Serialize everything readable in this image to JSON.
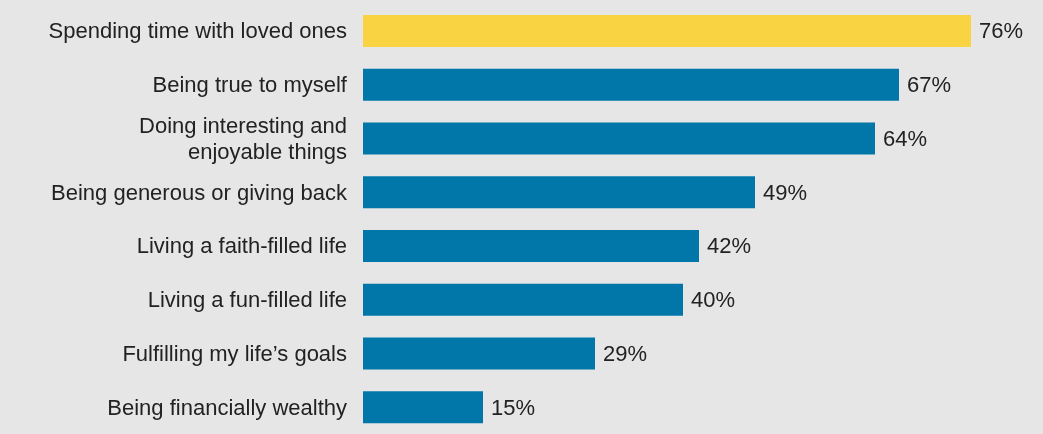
{
  "chart_data": {
    "type": "bar",
    "orientation": "horizontal",
    "categories": [
      "Spending time with loved ones",
      "Being true to myself",
      "Doing interesting and\nenjoyable things",
      "Being generous or giving back",
      "Living a faith-filled life",
      "Living a fun-filled life",
      "Fulfilling my life’s goals",
      "Being financially wealthy"
    ],
    "values": [
      76,
      67,
      64,
      49,
      42,
      40,
      29,
      15
    ],
    "colors": [
      "#f9d342",
      "#0077a8",
      "#0077a8",
      "#0077a8",
      "#0077a8",
      "#0077a8",
      "#0077a8",
      "#0077a8"
    ],
    "value_labels": [
      "76%",
      "67%",
      "64%",
      "49%",
      "42%",
      "40%",
      "29%",
      "15%"
    ],
    "xlim": [
      0,
      85
    ],
    "tick_labels": "y"
  }
}
